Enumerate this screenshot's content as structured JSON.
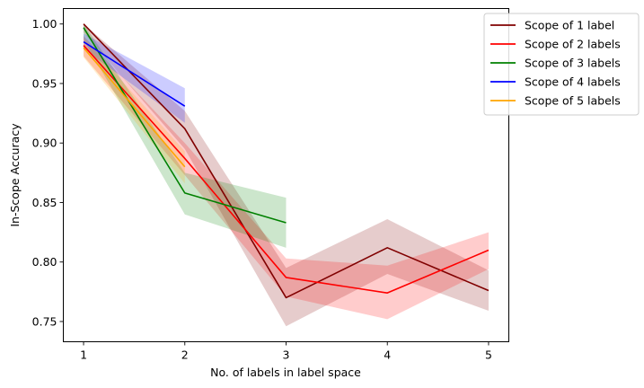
{
  "chart_data": {
    "type": "line",
    "title": "",
    "xlabel": "No. of labels in label space",
    "ylabel": "In-Scope Accuracy",
    "xlim": [
      0.8,
      5.2
    ],
    "ylim": [
      0.733,
      1.013
    ],
    "xticks": [
      1,
      2,
      3,
      4,
      5
    ],
    "yticks": [
      0.75,
      0.8,
      0.85,
      0.9,
      0.95,
      1.0
    ],
    "ytick_labels": [
      "0.75",
      "0.80",
      "0.85",
      "0.90",
      "0.95",
      "1.00"
    ],
    "grid": false,
    "legend_position": "top-right",
    "series": [
      {
        "name": "Scope of 1 label",
        "color": "#800000",
        "x": [
          1,
          2,
          3,
          4,
          5
        ],
        "values": [
          1.0,
          0.912,
          0.77,
          0.812,
          0.776
        ],
        "lower": [
          0.993,
          0.895,
          0.746,
          0.79,
          0.759
        ],
        "upper": [
          1.0,
          0.927,
          0.795,
          0.836,
          0.793
        ]
      },
      {
        "name": "Scope of 2 labels",
        "color": "#ff0000",
        "x": [
          1,
          2,
          3,
          4,
          5
        ],
        "values": [
          0.982,
          0.887,
          0.787,
          0.774,
          0.81
        ],
        "lower": [
          0.973,
          0.873,
          0.771,
          0.752,
          0.794
        ],
        "upper": [
          0.99,
          0.9,
          0.803,
          0.797,
          0.825
        ]
      },
      {
        "name": "Scope of 3 labels",
        "color": "#008000",
        "x": [
          1,
          2,
          3
        ],
        "values": [
          0.997,
          0.858,
          0.833
        ],
        "lower": [
          0.987,
          0.84,
          0.812
        ],
        "upper": [
          1.0,
          0.875,
          0.854
        ]
      },
      {
        "name": "Scope of 4 labels",
        "color": "#0000ff",
        "x": [
          1,
          2
        ],
        "values": [
          0.985,
          0.931
        ],
        "lower": [
          0.979,
          0.917
        ],
        "upper": [
          0.992,
          0.946
        ]
      },
      {
        "name": "Scope of 5 labels",
        "color": "#ffa500",
        "x": [
          1,
          2
        ],
        "values": [
          0.98,
          0.88
        ],
        "lower": [
          0.972,
          0.866
        ],
        "upper": [
          0.988,
          0.893
        ]
      }
    ]
  }
}
